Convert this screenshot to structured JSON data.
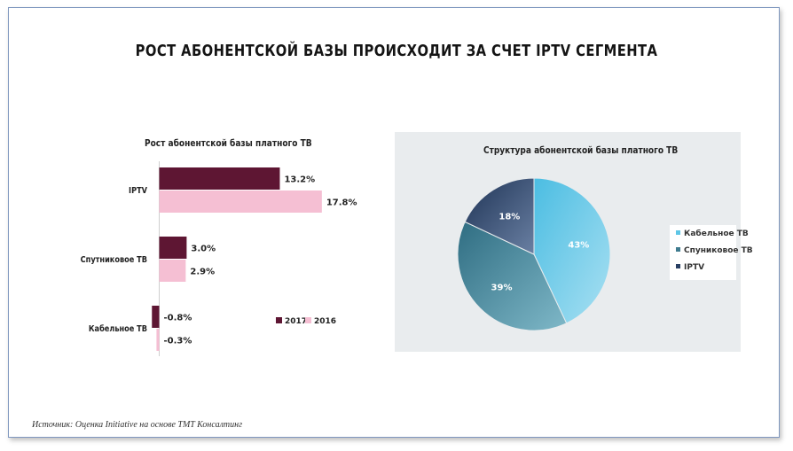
{
  "header": {
    "title": "РОСТ АБОНЕНТСКОЙ БАЗЫ ПРОИСХОДИТ ЗА СЧЕТ IPTV СЕГМЕНТА",
    "source": "Источник: Оценка Initiative на основе TMT Консалтинг"
  },
  "colors": {
    "series_2017": "#5e1633",
    "series_2016": "#f5bfd3",
    "cable": "#5ec6e6",
    "satellite": "#3f7b8f",
    "iptv": "#293f63"
  },
  "chart_data": [
    {
      "type": "bar",
      "orientation": "horizontal",
      "title": "Рост абонентской базы платного ТВ",
      "categories": [
        "IPTV",
        "Спутниковое ТВ",
        "Кабельное ТВ"
      ],
      "series": [
        {
          "name": "2017",
          "values": [
            13.2,
            3.0,
            -0.8
          ],
          "labels": [
            "13.2%",
            "3.0%",
            "-0.8%"
          ]
        },
        {
          "name": "2016",
          "values": [
            17.8,
            2.9,
            -0.3
          ],
          "labels": [
            "17.8%",
            "2.9%",
            "-0.3%"
          ]
        }
      ],
      "legend": "inside-right"
    },
    {
      "type": "pie",
      "title": "Структура абонентской базы платного ТВ",
      "slices": [
        {
          "label": "Кабельное ТВ",
          "value": 43,
          "text": "43%"
        },
        {
          "label": "Спуниковое ТВ",
          "value": 39,
          "text": "39%"
        },
        {
          "label": "IPTV",
          "value": 18,
          "text": "18%"
        }
      ],
      "legend": "right"
    }
  ]
}
